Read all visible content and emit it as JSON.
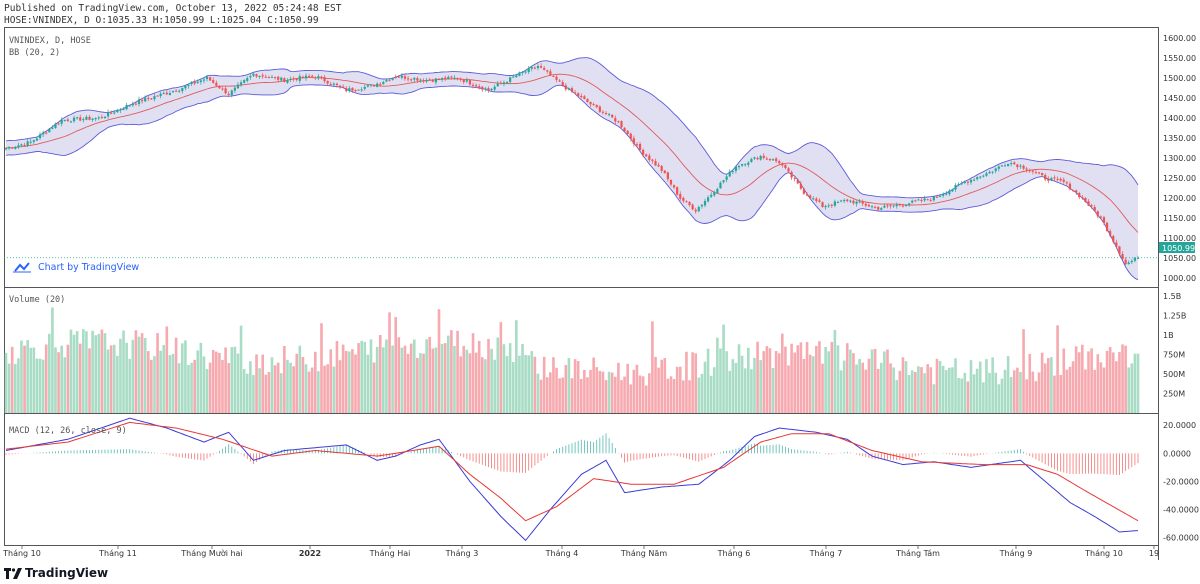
{
  "header": {
    "published": "Published on TradingView.com, October 13, 2022 05:24:48 EST",
    "symbol_line": "HOSE:VNINDEX, D O:1035.33 H:1050.99 L:1025.04 C:1050.99"
  },
  "legends": {
    "main_symbol": "VNINDEX, D, HOSE",
    "bb": "BB (20, 2)",
    "volume": "Volume (20)",
    "macd": "MACD (12, 26, close, 9)"
  },
  "watermark": "Chart by TradingView",
  "brand": "TradingView",
  "last_price_label": "1050.99",
  "colors": {
    "up": "#26a69a",
    "down": "#ef5350",
    "vol_up": "#a8dcc5",
    "vol_down": "#f6a9ae",
    "band_fill": "#e1e0f2",
    "band_line": "#5b5bd6",
    "basis": "#e05a5a",
    "macd_line": "#3b3bd6",
    "signal_line": "#e53935",
    "last_price_bg": "#26a69a"
  },
  "chart_data": [
    {
      "type": "candlestick",
      "x_labels": [
        "Tháng 10",
        "Tháng 11",
        "Tháng Mười hai",
        "2022",
        "Tháng Hai",
        "Tháng 3",
        "Tháng 4",
        "Tháng Năm",
        "Tháng 6",
        "Tháng 7",
        "Tháng Tám",
        "Tháng 9",
        "Tháng 10",
        "19"
      ],
      "y_ticks": [
        1000,
        1050,
        1100,
        1150,
        1200,
        1250,
        1300,
        1350,
        1400,
        1450,
        1500,
        1550,
        1600
      ],
      "ylim": [
        978,
        1625
      ],
      "close_path": [
        [
          0,
          1325
        ],
        [
          8,
          1340
        ],
        [
          18,
          1395
        ],
        [
          30,
          1400
        ],
        [
          42,
          1440
        ],
        [
          55,
          1470
        ],
        [
          65,
          1500
        ],
        [
          72,
          1460
        ],
        [
          80,
          1510
        ],
        [
          90,
          1495
        ],
        [
          100,
          1505
        ],
        [
          110,
          1470
        ],
        [
          118,
          1480
        ],
        [
          126,
          1505
        ],
        [
          136,
          1495
        ],
        [
          146,
          1500
        ],
        [
          156,
          1470
        ],
        [
          166,
          1510
        ],
        [
          172,
          1530
        ],
        [
          182,
          1470
        ],
        [
          192,
          1420
        ],
        [
          198,
          1390
        ],
        [
          205,
          1320
        ],
        [
          212,
          1270
        ],
        [
          218,
          1200
        ],
        [
          223,
          1170
        ],
        [
          228,
          1210
        ],
        [
          236,
          1280
        ],
        [
          244,
          1305
        ],
        [
          250,
          1290
        ],
        [
          258,
          1215
        ],
        [
          264,
          1180
        ],
        [
          272,
          1195
        ],
        [
          282,
          1175
        ],
        [
          290,
          1185
        ],
        [
          300,
          1200
        ],
        [
          310,
          1240
        ],
        [
          318,
          1265
        ],
        [
          324,
          1290
        ],
        [
          330,
          1275
        ],
        [
          336,
          1250
        ],
        [
          342,
          1240
        ],
        [
          348,
          1200
        ],
        [
          354,
          1150
        ],
        [
          358,
          1095
        ],
        [
          362,
          1035
        ],
        [
          366,
          1051
        ]
      ],
      "last_close": 1050.99
    },
    {
      "type": "bar",
      "title": "Volume (20)",
      "y_ticks": [
        "250M",
        "500M",
        "750M",
        "1B",
        "1.25B",
        "1.5B"
      ],
      "ylim": [
        0,
        1550
      ]
    },
    {
      "type": "line",
      "title": "MACD (12, 26, close, 9)",
      "y_ticks": [
        20,
        0,
        -20,
        -40,
        -60
      ],
      "ylim": [
        -66,
        28
      ],
      "macd_path": [
        [
          0,
          2
        ],
        [
          20,
          10
        ],
        [
          40,
          25
        ],
        [
          52,
          18
        ],
        [
          64,
          8
        ],
        [
          72,
          15
        ],
        [
          80,
          -5
        ],
        [
          90,
          2
        ],
        [
          100,
          4
        ],
        [
          110,
          6
        ],
        [
          120,
          -5
        ],
        [
          126,
          -2
        ],
        [
          134,
          6
        ],
        [
          140,
          10
        ],
        [
          150,
          -20
        ],
        [
          160,
          -45
        ],
        [
          168,
          -62
        ],
        [
          176,
          -40
        ],
        [
          186,
          -15
        ],
        [
          194,
          -5
        ],
        [
          200,
          -28
        ],
        [
          212,
          -24
        ],
        [
          224,
          -22
        ],
        [
          234,
          -5
        ],
        [
          242,
          12
        ],
        [
          250,
          18
        ],
        [
          262,
          15
        ],
        [
          272,
          10
        ],
        [
          280,
          -2
        ],
        [
          290,
          -8
        ],
        [
          300,
          -6
        ],
        [
          312,
          -10
        ],
        [
          328,
          -5
        ],
        [
          336,
          -20
        ],
        [
          344,
          -35
        ],
        [
          352,
          -45
        ],
        [
          360,
          -56
        ],
        [
          366,
          -55
        ]
      ],
      "signal_path": [
        [
          0,
          3
        ],
        [
          20,
          8
        ],
        [
          40,
          22
        ],
        [
          55,
          18
        ],
        [
          70,
          10
        ],
        [
          86,
          -2
        ],
        [
          100,
          2
        ],
        [
          120,
          -2
        ],
        [
          140,
          5
        ],
        [
          150,
          -15
        ],
        [
          160,
          -32
        ],
        [
          168,
          -48
        ],
        [
          178,
          -38
        ],
        [
          190,
          -18
        ],
        [
          202,
          -22
        ],
        [
          216,
          -22
        ],
        [
          232,
          -10
        ],
        [
          244,
          8
        ],
        [
          254,
          14
        ],
        [
          266,
          14
        ],
        [
          280,
          2
        ],
        [
          296,
          -6
        ],
        [
          316,
          -8
        ],
        [
          330,
          -8
        ],
        [
          340,
          -15
        ],
        [
          350,
          -28
        ],
        [
          358,
          -38
        ],
        [
          366,
          -48
        ]
      ]
    }
  ]
}
